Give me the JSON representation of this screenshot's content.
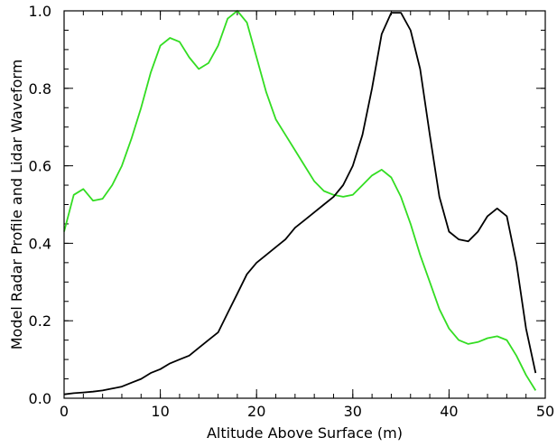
{
  "chart_data": {
    "type": "line",
    "xlabel": "Altitude Above Surface (m)",
    "ylabel": "Model Radar Profile and Lidar Waveform",
    "xlim": [
      0,
      50
    ],
    "ylim": [
      0.0,
      1.0
    ],
    "x_ticks": [
      "0",
      "10",
      "20",
      "30",
      "40",
      "50"
    ],
    "y_ticks": [
      "0.0",
      "0.2",
      "0.4",
      "0.6",
      "0.8",
      "1.0"
    ],
    "grid": false,
    "series": [
      {
        "color": "#33dd22",
        "x": [
          0,
          1,
          2,
          3,
          4,
          5,
          6,
          7,
          8,
          9,
          10,
          11,
          12,
          13,
          14,
          15,
          16,
          17,
          18,
          19,
          20,
          21,
          22,
          23,
          24,
          25,
          26,
          27,
          28,
          29,
          30,
          31,
          32,
          33,
          34,
          35,
          36,
          37,
          38,
          39,
          40,
          41,
          42,
          43,
          44,
          45,
          46,
          47,
          48,
          49
        ],
        "y": [
          0.43,
          0.525,
          0.54,
          0.51,
          0.515,
          0.55,
          0.6,
          0.67,
          0.75,
          0.84,
          0.91,
          0.93,
          0.92,
          0.88,
          0.85,
          0.865,
          0.91,
          0.98,
          1.0,
          0.97,
          0.88,
          0.79,
          0.72,
          0.68,
          0.64,
          0.6,
          0.56,
          0.535,
          0.525,
          0.52,
          0.525,
          0.55,
          0.575,
          0.59,
          0.57,
          0.52,
          0.45,
          0.37,
          0.3,
          0.23,
          0.18,
          0.15,
          0.14,
          0.145,
          0.155,
          0.16,
          0.15,
          0.11,
          0.06,
          0.02
        ]
      },
      {
        "color": "#000000",
        "x": [
          0,
          1,
          2,
          3,
          4,
          5,
          6,
          7,
          8,
          9,
          10,
          11,
          12,
          13,
          14,
          15,
          16,
          17,
          18,
          19,
          20,
          21,
          22,
          23,
          24,
          25,
          26,
          27,
          28,
          29,
          30,
          31,
          32,
          33,
          34,
          35,
          36,
          37,
          38,
          39,
          40,
          41,
          42,
          43,
          44,
          45,
          46,
          47,
          48,
          49
        ],
        "y": [
          0.01,
          0.013,
          0.015,
          0.017,
          0.02,
          0.025,
          0.03,
          0.04,
          0.05,
          0.065,
          0.075,
          0.09,
          0.1,
          0.11,
          0.13,
          0.15,
          0.17,
          0.22,
          0.27,
          0.32,
          0.35,
          0.37,
          0.39,
          0.41,
          0.44,
          0.46,
          0.48,
          0.5,
          0.52,
          0.55,
          0.6,
          0.68,
          0.8,
          0.94,
          0.995,
          0.995,
          0.95,
          0.85,
          0.68,
          0.52,
          0.43,
          0.41,
          0.405,
          0.43,
          0.47,
          0.49,
          0.47,
          0.35,
          0.18,
          0.065
        ]
      }
    ]
  }
}
